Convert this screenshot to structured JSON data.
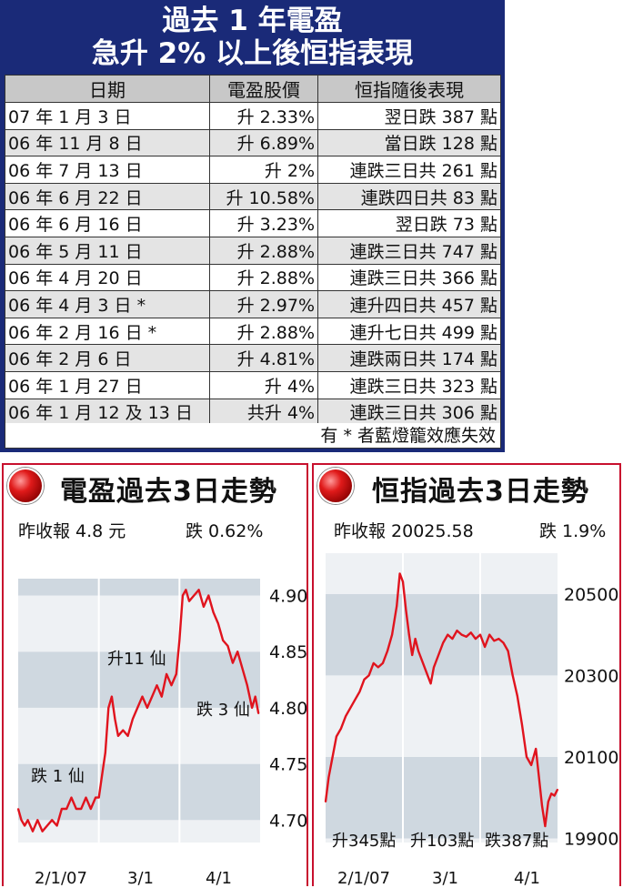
{
  "table": {
    "title_line1": "過去 1 年電盈",
    "title_line2": "急升 2% 以上後恒指表現",
    "headers": [
      "日期",
      "電盈股價",
      "恒指隨後表現"
    ],
    "rows": [
      [
        "07 年 1 月 3 日",
        "升 2.33%",
        "翌日跌 387 點"
      ],
      [
        "06 年 11 月 8 日",
        "升 6.89%",
        "當日跌 128 點"
      ],
      [
        "06 年 7 月 13 日",
        "升 2%",
        "連跌三日共 261 點"
      ],
      [
        "06 年 6 月 22 日",
        "升 10.58%",
        "連跌四日共 83 點"
      ],
      [
        "06 年 6 月 16 日",
        "升 3.23%",
        "翌日跌 73 點"
      ],
      [
        "06 年 5 月 11 日",
        "升 2.88%",
        "連跌三日共 747 點"
      ],
      [
        "06 年 4 月 20 日",
        "升 2.88%",
        "連跌三日共 366 點"
      ],
      [
        "06 年 4 月 3 日 *",
        "升 2.97%",
        "連升四日共 457 點"
      ],
      [
        "06 年 2 月 16 日 *",
        "升 2.88%",
        "連升七日共 499 點"
      ],
      [
        "06 年 2 月 6 日",
        "升 4.81%",
        "連跌兩日共 174 點"
      ],
      [
        "06 年 1 月 27 日",
        "升 4%",
        "連跌三日共 323 點"
      ],
      [
        "06 年 1 月 12 及 13 日",
        "共升 4%",
        "連跌三日共 306 點"
      ]
    ],
    "footnote": "有 * 者藍燈籠效應失效"
  },
  "charts": {
    "pccw": {
      "title": "電盈過去3日走勢",
      "prev_close": "昨收報 4.8 元",
      "change": "跌 0.62%"
    },
    "hsi": {
      "title": "恒指過去3日走勢",
      "prev_close": "昨收報 20025.58",
      "change": "跌 1.9%"
    }
  },
  "chart_data": [
    {
      "type": "line",
      "title": "電盈過去3日走勢",
      "x_ticks": [
        "2/1/07",
        "3/1",
        "4/1"
      ],
      "y_ticks": [
        "4.90",
        "4.85",
        "4.80",
        "4.75",
        "4.70"
      ],
      "ylim": [
        4.68,
        4.915
      ],
      "grid": true,
      "annotations": [
        "跌 1 仙",
        "升11 仙",
        "跌 3 仙"
      ],
      "series": [
        {
          "color": "#e0141e",
          "points": [
            [
              0.0,
              4.71
            ],
            [
              0.04,
              4.7
            ],
            [
              0.08,
              4.695
            ],
            [
              0.12,
              4.7
            ],
            [
              0.18,
              4.69
            ],
            [
              0.24,
              4.7
            ],
            [
              0.3,
              4.69
            ],
            [
              0.36,
              4.695
            ],
            [
              0.42,
              4.7
            ],
            [
              0.48,
              4.695
            ],
            [
              0.54,
              4.71
            ],
            [
              0.6,
              4.71
            ],
            [
              0.66,
              4.72
            ],
            [
              0.72,
              4.71
            ],
            [
              0.78,
              4.71
            ],
            [
              0.84,
              4.72
            ],
            [
              0.9,
              4.71
            ],
            [
              0.96,
              4.72
            ],
            [
              1.0,
              4.72
            ],
            [
              1.04,
              4.74
            ],
            [
              1.08,
              4.76
            ],
            [
              1.12,
              4.8
            ],
            [
              1.16,
              4.81
            ],
            [
              1.2,
              4.79
            ],
            [
              1.24,
              4.775
            ],
            [
              1.3,
              4.78
            ],
            [
              1.36,
              4.775
            ],
            [
              1.42,
              4.79
            ],
            [
              1.48,
              4.8
            ],
            [
              1.54,
              4.81
            ],
            [
              1.6,
              4.8
            ],
            [
              1.66,
              4.81
            ],
            [
              1.72,
              4.82
            ],
            [
              1.78,
              4.81
            ],
            [
              1.84,
              4.83
            ],
            [
              1.9,
              4.82
            ],
            [
              1.96,
              4.83
            ],
            [
              2.0,
              4.86
            ],
            [
              2.04,
              4.9
            ],
            [
              2.08,
              4.905
            ],
            [
              2.12,
              4.895
            ],
            [
              2.18,
              4.9
            ],
            [
              2.24,
              4.905
            ],
            [
              2.3,
              4.89
            ],
            [
              2.36,
              4.9
            ],
            [
              2.42,
              4.885
            ],
            [
              2.48,
              4.875
            ],
            [
              2.54,
              4.86
            ],
            [
              2.6,
              4.855
            ],
            [
              2.66,
              4.84
            ],
            [
              2.72,
              4.85
            ],
            [
              2.78,
              4.835
            ],
            [
              2.84,
              4.82
            ],
            [
              2.9,
              4.8
            ],
            [
              2.94,
              4.81
            ],
            [
              2.98,
              4.795
            ]
          ]
        }
      ]
    },
    {
      "type": "line",
      "title": "恒指過去3日走勢",
      "x_ticks": [
        "2/1/07",
        "3/1",
        "4/1"
      ],
      "y_ticks": [
        "20500",
        "20300",
        "20100",
        "19900"
      ],
      "ylim": [
        19890,
        20600
      ],
      "grid": true,
      "annotations": [
        "升345點",
        "升103點",
        "跌387點"
      ],
      "series": [
        {
          "color": "#e0141e",
          "points": [
            [
              0.0,
              19990
            ],
            [
              0.04,
              20050
            ],
            [
              0.08,
              20090
            ],
            [
              0.14,
              20150
            ],
            [
              0.2,
              20170
            ],
            [
              0.26,
              20200
            ],
            [
              0.32,
              20220
            ],
            [
              0.38,
              20240
            ],
            [
              0.44,
              20260
            ],
            [
              0.5,
              20290
            ],
            [
              0.56,
              20300
            ],
            [
              0.62,
              20330
            ],
            [
              0.68,
              20320
            ],
            [
              0.74,
              20330
            ],
            [
              0.8,
              20360
            ],
            [
              0.86,
              20400
            ],
            [
              0.92,
              20470
            ],
            [
              0.96,
              20550
            ],
            [
              1.0,
              20530
            ],
            [
              1.04,
              20460
            ],
            [
              1.08,
              20400
            ],
            [
              1.12,
              20350
            ],
            [
              1.16,
              20390
            ],
            [
              1.2,
              20360
            ],
            [
              1.26,
              20330
            ],
            [
              1.32,
              20300
            ],
            [
              1.36,
              20280
            ],
            [
              1.4,
              20320
            ],
            [
              1.46,
              20350
            ],
            [
              1.52,
              20380
            ],
            [
              1.58,
              20400
            ],
            [
              1.64,
              20390
            ],
            [
              1.7,
              20410
            ],
            [
              1.76,
              20400
            ],
            [
              1.82,
              20395
            ],
            [
              1.88,
              20405
            ],
            [
              1.94,
              20390
            ],
            [
              2.0,
              20400
            ],
            [
              2.06,
              20370
            ],
            [
              2.12,
              20400
            ],
            [
              2.18,
              20385
            ],
            [
              2.24,
              20390
            ],
            [
              2.3,
              20380
            ],
            [
              2.36,
              20360
            ],
            [
              2.42,
              20300
            ],
            [
              2.48,
              20250
            ],
            [
              2.54,
              20180
            ],
            [
              2.6,
              20100
            ],
            [
              2.66,
              20080
            ],
            [
              2.72,
              20120
            ],
            [
              2.76,
              20050
            ],
            [
              2.8,
              19980
            ],
            [
              2.84,
              19930
            ],
            [
              2.88,
              19990
            ],
            [
              2.92,
              20010
            ],
            [
              2.96,
              20005
            ],
            [
              3.0,
              20020
            ]
          ]
        }
      ]
    }
  ]
}
